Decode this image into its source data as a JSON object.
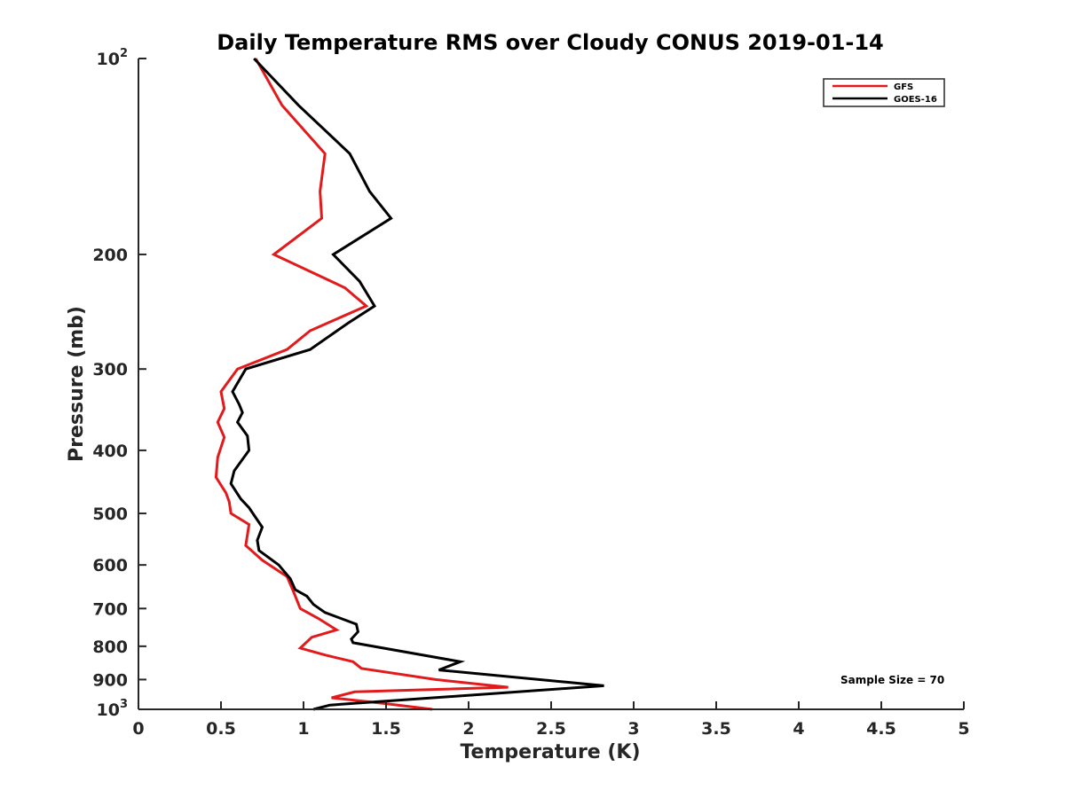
{
  "chart_data": {
    "type": "line",
    "title": "Daily Temperature RMS over Cloudy CONUS 2019-01-14",
    "xlabel": "Temperature (K)",
    "ylabel": "Pressure (mb)",
    "xlim": [
      0,
      5
    ],
    "ylim": [
      100,
      1000
    ],
    "y_scale": "log",
    "y_reversed": true,
    "grid": false,
    "legend_position": "top-right",
    "x_ticks": [
      {
        "value": 0,
        "label": "0"
      },
      {
        "value": 0.5,
        "label": "0.5"
      },
      {
        "value": 1,
        "label": "1"
      },
      {
        "value": 1.5,
        "label": "1.5"
      },
      {
        "value": 2,
        "label": "2"
      },
      {
        "value": 2.5,
        "label": "2.5"
      },
      {
        "value": 3,
        "label": "3"
      },
      {
        "value": 3.5,
        "label": "3.5"
      },
      {
        "value": 4,
        "label": "4"
      },
      {
        "value": 4.5,
        "label": "4.5"
      },
      {
        "value": 5,
        "label": "5"
      }
    ],
    "y_ticks": [
      {
        "value": 100,
        "label": "10",
        "sup": "2"
      },
      {
        "value": 200,
        "label": "200"
      },
      {
        "value": 300,
        "label": "300"
      },
      {
        "value": 400,
        "label": "400"
      },
      {
        "value": 500,
        "label": "500"
      },
      {
        "value": 600,
        "label": "600"
      },
      {
        "value": 700,
        "label": "700"
      },
      {
        "value": 800,
        "label": "800"
      },
      {
        "value": 900,
        "label": "900"
      },
      {
        "value": 1000,
        "label": "10",
        "sup": "3"
      }
    ],
    "series": [
      {
        "name": "GFS",
        "color": "#e31a1c",
        "points": [
          [
            0.71,
            100
          ],
          [
            0.87,
            118
          ],
          [
            1.13,
            140
          ],
          [
            1.1,
            160
          ],
          [
            1.11,
            176
          ],
          [
            0.82,
            200
          ],
          [
            1.25,
            225
          ],
          [
            1.38,
            240
          ],
          [
            1.04,
            262
          ],
          [
            0.9,
            280
          ],
          [
            0.6,
            300
          ],
          [
            0.5,
            325
          ],
          [
            0.52,
            345
          ],
          [
            0.48,
            362
          ],
          [
            0.52,
            382
          ],
          [
            0.48,
            410
          ],
          [
            0.47,
            440
          ],
          [
            0.53,
            465
          ],
          [
            0.55,
            480
          ],
          [
            0.56,
            500
          ],
          [
            0.67,
            520
          ],
          [
            0.65,
            560
          ],
          [
            0.75,
            590
          ],
          [
            0.9,
            625
          ],
          [
            0.94,
            660
          ],
          [
            0.98,
            700
          ],
          [
            1.09,
            725
          ],
          [
            1.2,
            755
          ],
          [
            1.05,
            775
          ],
          [
            0.98,
            805
          ],
          [
            1.13,
            825
          ],
          [
            1.3,
            845
          ],
          [
            1.35,
            865
          ],
          [
            1.8,
            900
          ],
          [
            2.24,
            925
          ],
          [
            1.31,
            940
          ],
          [
            1.17,
            960
          ],
          [
            1.5,
            980
          ],
          [
            1.78,
            1000
          ]
        ]
      },
      {
        "name": "GOES-16",
        "color": "#000000",
        "points": [
          [
            0.7,
            100
          ],
          [
            0.97,
            118
          ],
          [
            1.28,
            140
          ],
          [
            1.4,
            160
          ],
          [
            1.53,
            176
          ],
          [
            1.18,
            200
          ],
          [
            1.34,
            220
          ],
          [
            1.43,
            240
          ],
          [
            1.27,
            255
          ],
          [
            1.04,
            280
          ],
          [
            0.65,
            300
          ],
          [
            0.57,
            325
          ],
          [
            0.61,
            340
          ],
          [
            0.63,
            350
          ],
          [
            0.6,
            362
          ],
          [
            0.66,
            380
          ],
          [
            0.67,
            400
          ],
          [
            0.58,
            430
          ],
          [
            0.56,
            450
          ],
          [
            0.62,
            475
          ],
          [
            0.67,
            490
          ],
          [
            0.75,
            525
          ],
          [
            0.72,
            550
          ],
          [
            0.73,
            570
          ],
          [
            0.85,
            600
          ],
          [
            0.92,
            630
          ],
          [
            0.95,
            655
          ],
          [
            1.02,
            670
          ],
          [
            1.06,
            690
          ],
          [
            1.13,
            710
          ],
          [
            1.32,
            740
          ],
          [
            1.33,
            760
          ],
          [
            1.29,
            780
          ],
          [
            1.3,
            790
          ],
          [
            1.95,
            845
          ],
          [
            1.82,
            870
          ],
          [
            2.82,
            920
          ],
          [
            1.16,
            985
          ],
          [
            1.06,
            1000
          ]
        ]
      }
    ],
    "annotation": "Sample Size = 70"
  }
}
